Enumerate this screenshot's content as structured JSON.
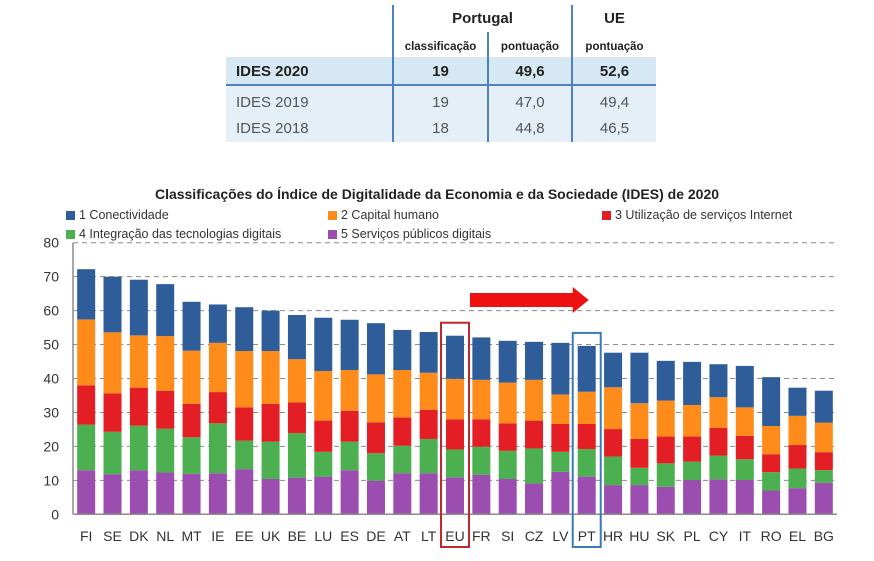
{
  "table": {
    "group_headers": {
      "portugal": "Portugal",
      "eu": "UE"
    },
    "sub_headers": {
      "pt_rank": "classificação",
      "pt_score": "pontuação",
      "eu_score": "pontuação"
    },
    "rows": [
      {
        "label": "IDES 2020",
        "pt_rank": "19",
        "pt_score": "49,6",
        "eu_score": "52,6",
        "highlight": true
      },
      {
        "label": "IDES 2019",
        "pt_rank": "19",
        "pt_score": "47,0",
        "eu_score": "49,4",
        "highlight": false
      },
      {
        "label": "IDES 2018",
        "pt_rank": "18",
        "pt_score": "44,8",
        "eu_score": "46,5",
        "highlight": false
      }
    ]
  },
  "chart_data": {
    "type": "bar",
    "stacked": true,
    "title": "Classificações do Índice de Digitalidade da Economia e da Sociedade (IDES) de 2020",
    "xlabel": "",
    "ylabel": "",
    "ylim": [
      0,
      80
    ],
    "yticks": [
      0,
      10,
      20,
      30,
      40,
      50,
      60,
      70,
      80
    ],
    "grid": true,
    "legend_position": "top",
    "categories": [
      "FI",
      "SE",
      "DK",
      "NL",
      "MT",
      "IE",
      "EE",
      "UK",
      "BE",
      "LU",
      "ES",
      "DE",
      "AT",
      "LT",
      "EU",
      "FR",
      "SI",
      "CZ",
      "LV",
      "PT",
      "HR",
      "HU",
      "SK",
      "PL",
      "CY",
      "IT",
      "RO",
      "EL",
      "BG"
    ],
    "highlighted": {
      "EU": "#c0282d",
      "PT": "#3a7ab8"
    },
    "annotation": {
      "type": "arrow",
      "direction": "right",
      "color": "#ee1111",
      "from_category": "EU",
      "to_category": "PT"
    },
    "series": [
      {
        "name": "5 Serviços públicos digitais",
        "color": "#9b4db0",
        "values": [
          13.0,
          11.8,
          13.0,
          12.3,
          11.9,
          12.1,
          13.3,
          10.4,
          10.8,
          11.1,
          13.0,
          9.9,
          12.1,
          12.1,
          10.9,
          11.6,
          10.4,
          9.1,
          12.5,
          11.1,
          8.6,
          8.6,
          8.1,
          10.1,
          10.3,
          10.1,
          7.0,
          7.7,
          9.3
        ]
      },
      {
        "name": "4 Integração das tecnologias digitais",
        "color": "#4caf50",
        "values": [
          13.4,
          12.5,
          13.1,
          12.9,
          10.8,
          14.7,
          8.4,
          11.0,
          13.1,
          7.3,
          8.4,
          8.1,
          8.1,
          10.1,
          8.2,
          8.3,
          8.3,
          10.3,
          5.9,
          8.1,
          8.4,
          5.1,
          6.9,
          5.4,
          7.0,
          6.1,
          5.4,
          5.8,
          3.7
        ]
      },
      {
        "name": "3 Utilização de serviços Internet",
        "color": "#e31e24",
        "values": [
          11.6,
          11.3,
          11.2,
          11.2,
          9.8,
          9.2,
          9.8,
          11.1,
          9.1,
          9.2,
          9.1,
          9.1,
          8.3,
          8.6,
          8.9,
          8.1,
          8.1,
          8.2,
          8.2,
          7.4,
          8.1,
          8.5,
          7.9,
          7.4,
          8.2,
          6.9,
          5.3,
          6.9,
          5.3
        ]
      },
      {
        "name": "2 Capital humano",
        "color": "#ff8c1a",
        "values": [
          19.4,
          18.0,
          15.4,
          16.1,
          15.7,
          14.5,
          16.6,
          15.6,
          12.7,
          14.6,
          12.0,
          14.1,
          14.0,
          10.9,
          11.9,
          11.6,
          12.0,
          12.0,
          8.7,
          9.5,
          12.3,
          10.5,
          10.6,
          9.3,
          9.0,
          8.4,
          8.3,
          8.6,
          8.7
        ]
      },
      {
        "name": "1 Conectividade",
        "color": "#2e5d9a",
        "values": [
          14.8,
          16.4,
          16.4,
          15.3,
          14.4,
          11.3,
          12.9,
          11.9,
          13.0,
          15.7,
          14.8,
          15.1,
          11.8,
          12.0,
          12.7,
          12.5,
          12.3,
          11.2,
          15.2,
          13.5,
          10.2,
          14.9,
          11.7,
          12.7,
          9.7,
          12.2,
          14.4,
          8.3,
          9.4
        ]
      }
    ],
    "legend_order": [
      {
        "name": "1 Conectividade",
        "color": "#2e5d9a"
      },
      {
        "name": "2 Capital humano",
        "color": "#ff8c1a"
      },
      {
        "name": "3 Utilização de serviços Internet",
        "color": "#e31e24"
      },
      {
        "name": "4 Integração das tecnologias digitais",
        "color": "#4caf50"
      },
      {
        "name": "5 Serviços públicos digitais",
        "color": "#9b4db0"
      }
    ]
  }
}
